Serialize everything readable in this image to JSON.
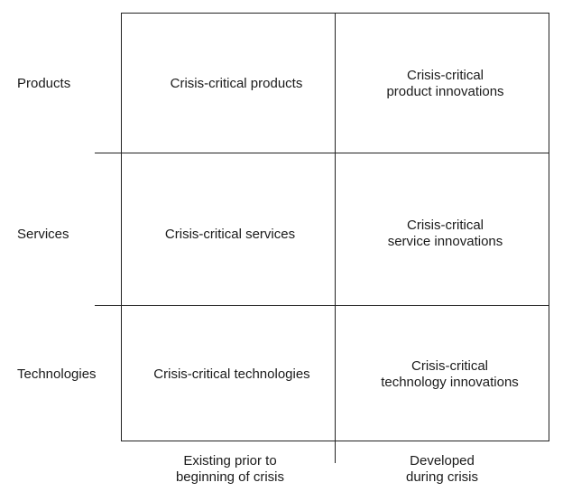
{
  "rows": [
    {
      "label": "Products"
    },
    {
      "label": "Services"
    },
    {
      "label": "Technologies"
    }
  ],
  "cells": {
    "products_existing": "Crisis-critical products",
    "products_developed": [
      "Crisis-critical",
      "product innovations"
    ],
    "services_existing": "Crisis-critical services",
    "services_developed": [
      "Crisis-critical",
      "service innovations"
    ],
    "technologies_existing": "Crisis-critical technologies",
    "technologies_developed": [
      "Crisis-critical",
      "technology innovations"
    ]
  },
  "columns": [
    {
      "label": [
        "Existing prior to",
        "beginning of crisis"
      ]
    },
    {
      "label": [
        "Developed",
        "during crisis"
      ]
    }
  ]
}
